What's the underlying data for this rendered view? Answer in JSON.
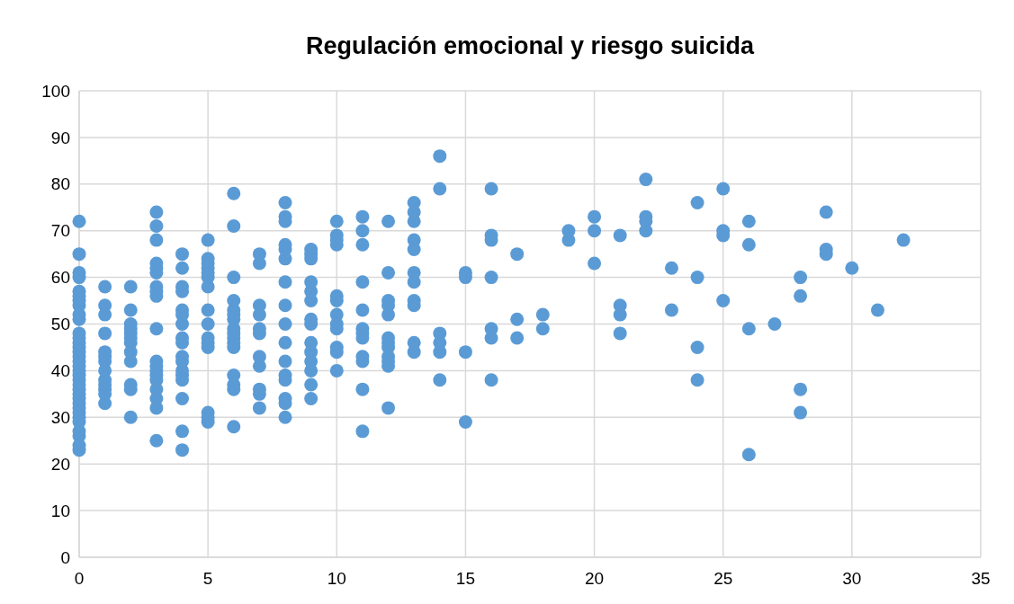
{
  "chart_data": {
    "type": "scatter",
    "title": "Regulación emocional y riesgo suicida",
    "xlim": [
      0,
      35
    ],
    "xticks": [
      0,
      5,
      10,
      15,
      20,
      25,
      30,
      35
    ],
    "ylim": [
      0,
      100
    ],
    "yticks": [
      0,
      10,
      20,
      30,
      40,
      50,
      60,
      70,
      80,
      90,
      100
    ],
    "grid": true,
    "marker": "circle",
    "series": [
      {
        "color": "#5b9bd5",
        "x": [
          0,
          0,
          0,
          0,
          0,
          0,
          0,
          0,
          0,
          0,
          0,
          0,
          0,
          0,
          0,
          0,
          0,
          0,
          0,
          0,
          0,
          0,
          0,
          0,
          0,
          0,
          0,
          0,
          0,
          0,
          0,
          0,
          0,
          0,
          1,
          1,
          1,
          1,
          1,
          1,
          1,
          1,
          1,
          1,
          1,
          1,
          1,
          2,
          2,
          2,
          2,
          2,
          2,
          2,
          2,
          2,
          2,
          2,
          2,
          3,
          3,
          3,
          3,
          3,
          3,
          3,
          3,
          3,
          3,
          3,
          3,
          3,
          3,
          3,
          3,
          3,
          3,
          3,
          4,
          4,
          4,
          4,
          4,
          4,
          4,
          4,
          4,
          4,
          4,
          4,
          4,
          4,
          4,
          4,
          4,
          5,
          5,
          5,
          5,
          5,
          5,
          5,
          5,
          5,
          5,
          5,
          5,
          5,
          5,
          5,
          6,
          6,
          6,
          6,
          6,
          6,
          6,
          6,
          6,
          6,
          6,
          6,
          6,
          6,
          6,
          6,
          7,
          7,
          7,
          7,
          7,
          7,
          7,
          7,
          7,
          7,
          7,
          8,
          8,
          8,
          8,
          8,
          8,
          8,
          8,
          8,
          8,
          8,
          8,
          8,
          8,
          8,
          8,
          9,
          9,
          9,
          9,
          9,
          9,
          9,
          9,
          9,
          9,
          9,
          9,
          9,
          9,
          10,
          10,
          10,
          10,
          10,
          10,
          10,
          10,
          10,
          10,
          10,
          10,
          11,
          11,
          11,
          11,
          11,
          11,
          11,
          11,
          11,
          11,
          11,
          11,
          12,
          12,
          12,
          12,
          12,
          12,
          12,
          12,
          12,
          12,
          12,
          12,
          13,
          13,
          13,
          13,
          13,
          13,
          13,
          13,
          13,
          13,
          13,
          14,
          14,
          14,
          14,
          14,
          14,
          15,
          15,
          15,
          15,
          16,
          16,
          16,
          16,
          16,
          16,
          16,
          17,
          17,
          17,
          18,
          18,
          19,
          19,
          20,
          20,
          20,
          21,
          21,
          21,
          21,
          22,
          22,
          22,
          22,
          23,
          23,
          24,
          24,
          24,
          24,
          25,
          25,
          25,
          25,
          26,
          26,
          26,
          26,
          27,
          28,
          28,
          28,
          28,
          29,
          29,
          29,
          30,
          31,
          32
        ],
        "values": [
          72,
          65,
          61,
          60,
          57,
          56,
          55,
          54,
          52,
          51,
          48,
          47,
          46,
          45,
          44,
          43,
          42,
          41,
          40,
          39,
          38,
          37,
          36,
          35,
          34,
          33,
          32,
          31,
          30,
          29,
          27,
          26,
          24,
          23,
          58,
          54,
          52,
          48,
          44,
          43,
          42,
          40,
          38,
          37,
          36,
          35,
          33,
          58,
          53,
          50,
          49,
          48,
          47,
          46,
          44,
          42,
          37,
          36,
          30,
          74,
          71,
          68,
          63,
          62,
          61,
          58,
          57,
          56,
          49,
          42,
          41,
          40,
          39,
          38,
          36,
          34,
          32,
          25,
          65,
          62,
          58,
          57,
          53,
          52,
          50,
          47,
          46,
          43,
          42,
          40,
          39,
          38,
          34,
          27,
          23,
          68,
          64,
          63,
          62,
          61,
          60,
          58,
          53,
          50,
          47,
          46,
          45,
          31,
          30,
          29,
          78,
          71,
          60,
          55,
          53,
          52,
          51,
          49,
          48,
          47,
          46,
          45,
          39,
          37,
          36,
          28,
          65,
          63,
          54,
          52,
          49,
          48,
          43,
          41,
          36,
          35,
          32,
          76,
          73,
          72,
          67,
          66,
          64,
          59,
          54,
          50,
          46,
          42,
          39,
          38,
          34,
          33,
          30,
          66,
          65,
          64,
          59,
          57,
          55,
          51,
          50,
          46,
          44,
          42,
          40,
          37,
          34,
          72,
          69,
          68,
          67,
          56,
          55,
          52,
          50,
          49,
          45,
          44,
          40,
          73,
          70,
          67,
          59,
          53,
          49,
          48,
          47,
          43,
          42,
          36,
          27,
          72,
          61,
          55,
          54,
          52,
          47,
          46,
          45,
          43,
          42,
          41,
          32,
          76,
          74,
          72,
          68,
          66,
          61,
          59,
          55,
          54,
          46,
          44,
          86,
          79,
          48,
          46,
          44,
          38,
          61,
          60,
          44,
          29,
          79,
          69,
          68,
          60,
          49,
          47,
          38,
          65,
          51,
          47,
          52,
          49,
          70,
          68,
          73,
          70,
          63,
          69,
          54,
          52,
          48,
          81,
          73,
          72,
          70,
          62,
          53,
          76,
          60,
          45,
          38,
          79,
          70,
          69,
          55,
          72,
          67,
          49,
          22,
          50,
          60,
          56,
          36,
          31,
          74,
          66,
          65,
          62,
          53,
          68
        ]
      }
    ]
  }
}
